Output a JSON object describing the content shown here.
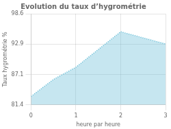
{
  "chart_data": {
    "type": "area",
    "title": "Evolution du taux d’hygrométrie",
    "x_label": "heure par heure",
    "y_label": "Taux hygrométrie %",
    "x": [
      0,
      0.5,
      1,
      2,
      3
    ],
    "values": [
      83.0,
      86.2,
      88.5,
      95.2,
      92.9
    ],
    "xlim": [
      0,
      3
    ],
    "ylim": [
      81.4,
      98.6
    ],
    "xticks": [
      0,
      1,
      2,
      3
    ],
    "yticks": [
      81.4,
      87.1,
      92.9,
      98.6
    ],
    "color": "#5bb8d4",
    "line_style": "dotted",
    "grid": true
  }
}
